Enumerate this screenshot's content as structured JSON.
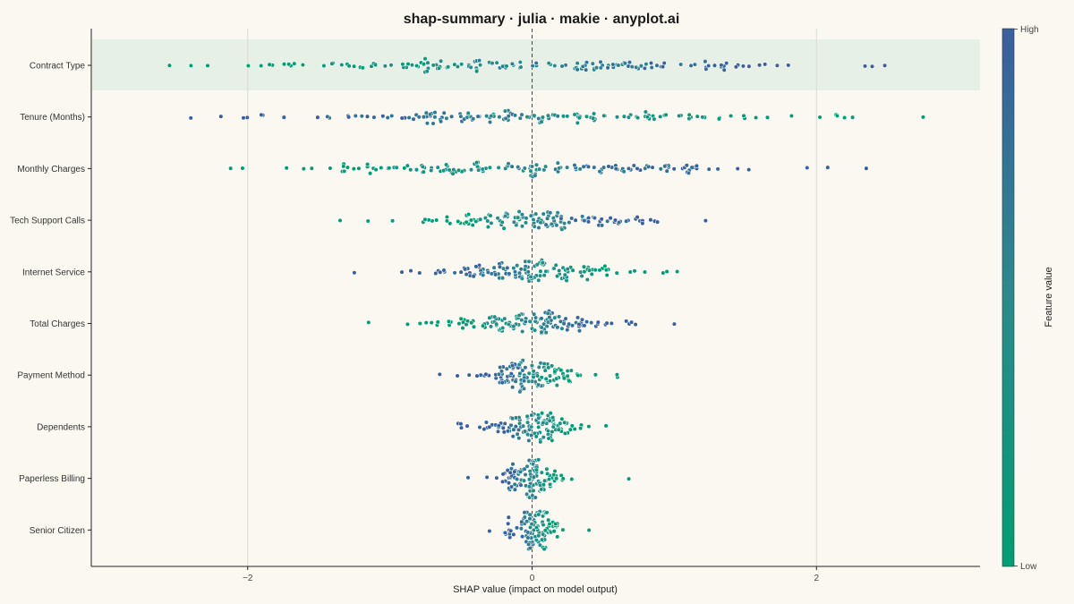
{
  "chart_data": {
    "type": "scatter",
    "subtype": "shap-beeswarm",
    "title": "shap-summary · julia · makie · anyplot.ai",
    "xlabel": "SHAP value (impact on model output)",
    "ylabel": "",
    "xlim": [
      -3.1,
      3.15
    ],
    "x_ticks": [
      -2,
      0,
      2
    ],
    "x_tick_labels": [
      "−2",
      "0",
      "2"
    ],
    "grid": true,
    "zero_line": "dashed vertical at x = 0",
    "highlighted_feature": "Contract Type",
    "colorbar": {
      "title": "Feature value",
      "high_label": "High",
      "low_label": "Low",
      "high_color": "#3A5F9E",
      "low_color": "#009E73"
    },
    "features": [
      {
        "name": "Contract Type",
        "x_min": -2.55,
        "x_max": 2.48,
        "spread": 1.0,
        "count": 150,
        "high_sign": 1
      },
      {
        "name": "Tenure (Months)",
        "x_min": -2.4,
        "x_max": 2.75,
        "spread": 0.92,
        "count": 145,
        "high_sign": -1
      },
      {
        "name": "Monthly Charges",
        "x_min": -2.12,
        "x_max": 2.35,
        "spread": 0.82,
        "count": 145,
        "high_sign": 1
      },
      {
        "name": "Tech Support Calls",
        "x_min": -1.35,
        "x_max": 1.22,
        "spread": 0.42,
        "count": 130,
        "high_sign": 1
      },
      {
        "name": "Internet Service",
        "x_min": -1.25,
        "x_max": 1.02,
        "spread": 0.36,
        "count": 130,
        "high_sign": -1
      },
      {
        "name": "Total Charges",
        "x_min": -1.15,
        "x_max": 1.0,
        "spread": 0.32,
        "count": 130,
        "high_sign": 1
      },
      {
        "name": "Payment Method",
        "x_min": -0.65,
        "x_max": 0.6,
        "spread": 0.2,
        "count": 120,
        "high_sign": -1
      },
      {
        "name": "Dependents",
        "x_min": -0.52,
        "x_max": 0.52,
        "spread": 0.18,
        "count": 120,
        "high_sign": -1
      },
      {
        "name": "Paperless Billing",
        "x_min": -0.45,
        "x_max": 0.68,
        "spread": 0.13,
        "count": 115,
        "high_sign": -1
      },
      {
        "name": "Senior Citizen",
        "x_min": -0.3,
        "x_max": 0.4,
        "spread": 0.09,
        "count": 110,
        "high_sign": -1
      }
    ]
  }
}
